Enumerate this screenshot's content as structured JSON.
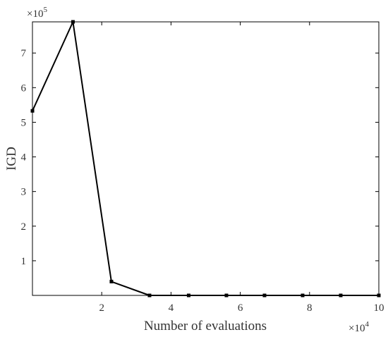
{
  "chart_data": {
    "type": "line",
    "title": "",
    "xlabel": "Number of evaluations",
    "ylabel": "IGD",
    "x_exponent_label": "×10",
    "x_exponent_power": "4",
    "y_exponent_label": "×10",
    "y_exponent_power": "5",
    "xlim": [
      0.0,
      100000
    ],
    "ylim": [
      0,
      790000
    ],
    "xticks": [
      20000,
      40000,
      60000,
      80000,
      100000
    ],
    "xtick_labels": [
      "2",
      "4",
      "6",
      "8",
      "10"
    ],
    "yticks": [
      100000,
      200000,
      300000,
      400000,
      500000,
      600000,
      700000
    ],
    "ytick_labels": [
      "1",
      "2",
      "3",
      "4",
      "5",
      "6",
      "7"
    ],
    "grid": false,
    "legend": "none",
    "series": [
      {
        "color": "#000000",
        "marker": "square",
        "x": [
          0,
          11700,
          22800,
          33800,
          45100,
          56000,
          67000,
          78000,
          89000,
          100000
        ],
        "y": [
          533000,
          790000,
          40000,
          0,
          0,
          0,
          0,
          0,
          0,
          0
        ]
      }
    ]
  }
}
